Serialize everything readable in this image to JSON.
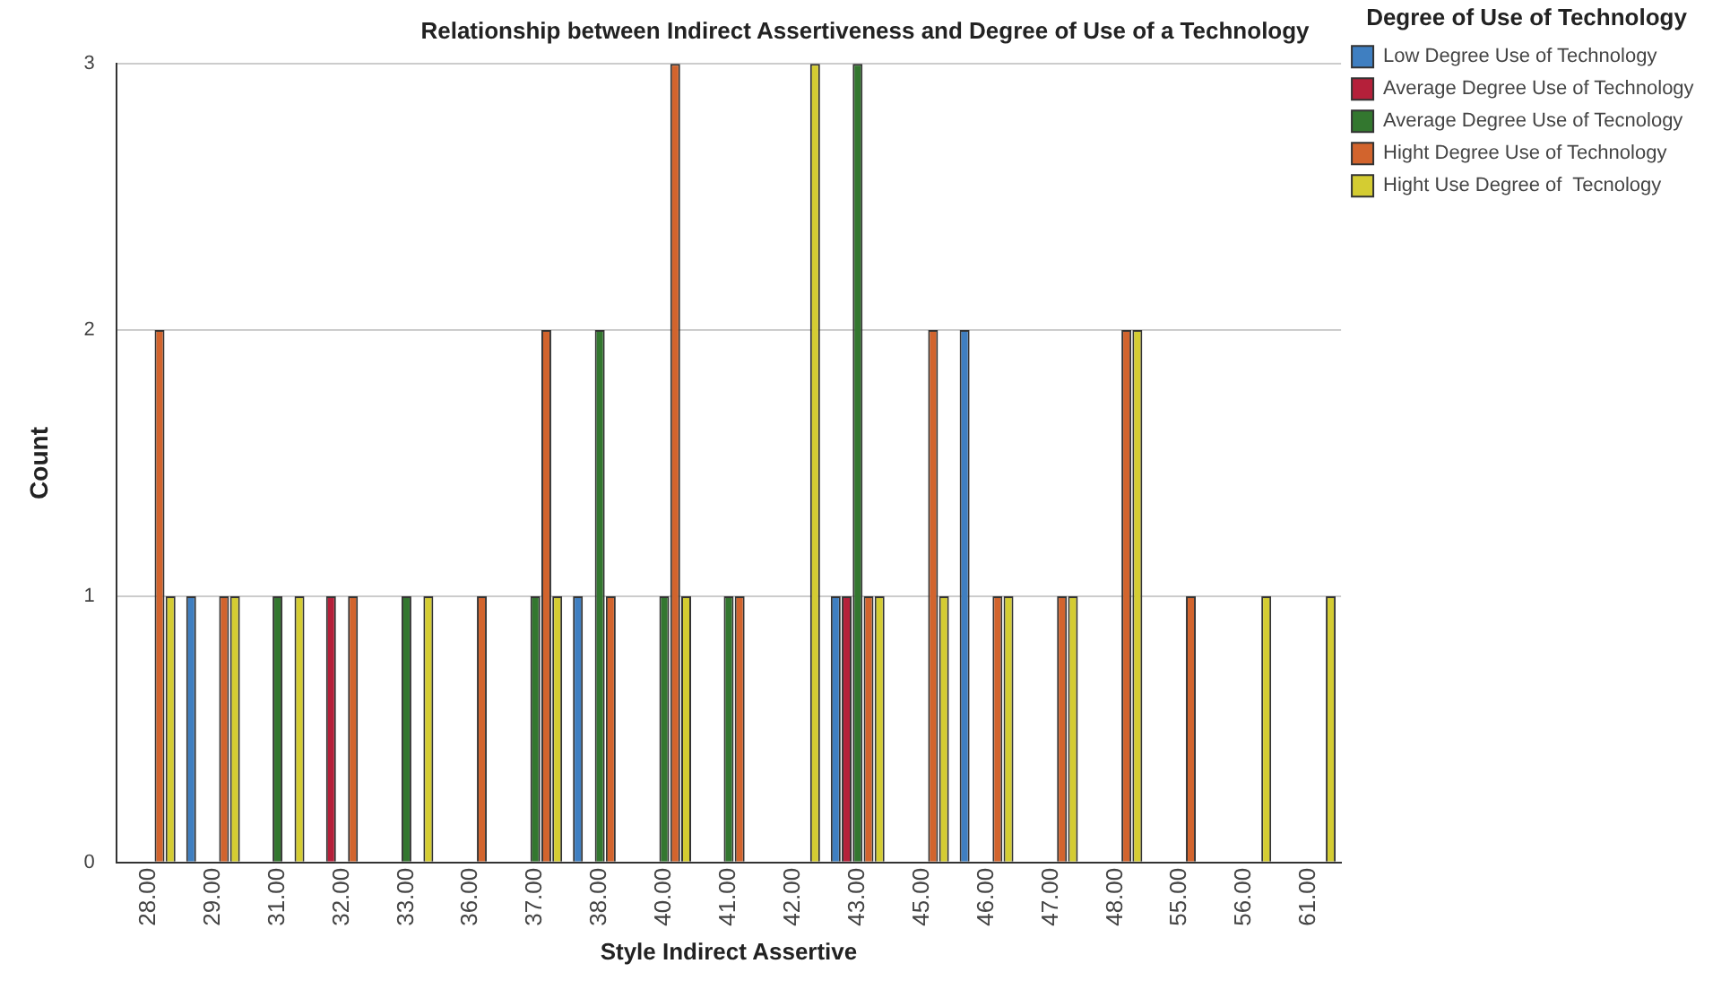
{
  "chart_data": {
    "type": "bar",
    "title": "Relationship between Indirect Assertiveness and Degree of Use of a Technology",
    "xlabel": "Style Indirect Assertive",
    "ylabel": "Count",
    "legend_title": "Degree of Use of Technology",
    "categories": [
      "28.00",
      "29.00",
      "31.00",
      "32.00",
      "33.00",
      "36.00",
      "37.00",
      "38.00",
      "40.00",
      "41.00",
      "42.00",
      "43.00",
      "45.00",
      "46.00",
      "47.00",
      "48.00",
      "55.00",
      "56.00",
      "61.00"
    ],
    "series": [
      {
        "name": "Low Degree Use of Technology",
        "color": "#3f7fc1",
        "values": [
          null,
          1,
          null,
          null,
          null,
          null,
          null,
          1,
          null,
          null,
          null,
          1,
          null,
          2,
          null,
          null,
          null,
          null,
          null
        ]
      },
      {
        "name": "Average Degree Use of Technology",
        "color": "#b5203a",
        "values": [
          null,
          null,
          null,
          1,
          null,
          null,
          null,
          null,
          null,
          null,
          null,
          1,
          null,
          null,
          null,
          null,
          null,
          null,
          null
        ]
      },
      {
        "name": "Average Degree Use of Tecnology",
        "color": "#33772f",
        "values": [
          null,
          null,
          1,
          null,
          1,
          null,
          1,
          2,
          1,
          1,
          null,
          3,
          null,
          null,
          null,
          null,
          null,
          null,
          null
        ]
      },
      {
        "name": "Hight Degree Use of Technology",
        "color": "#d2642d",
        "values": [
          2,
          1,
          null,
          1,
          null,
          1,
          2,
          1,
          3,
          1,
          null,
          1,
          2,
          1,
          1,
          2,
          1,
          null,
          null
        ]
      },
      {
        "name": "Hight Use Degree of  Tecnology",
        "color": "#d4cc32",
        "values": [
          1,
          1,
          1,
          null,
          1,
          null,
          1,
          null,
          1,
          null,
          3,
          1,
          1,
          1,
          1,
          2,
          null,
          1,
          1
        ]
      }
    ],
    "ylim": [
      0,
      3
    ],
    "yticks": [
      0,
      1,
      2,
      3
    ],
    "grid": "y",
    "legend": "top right"
  }
}
